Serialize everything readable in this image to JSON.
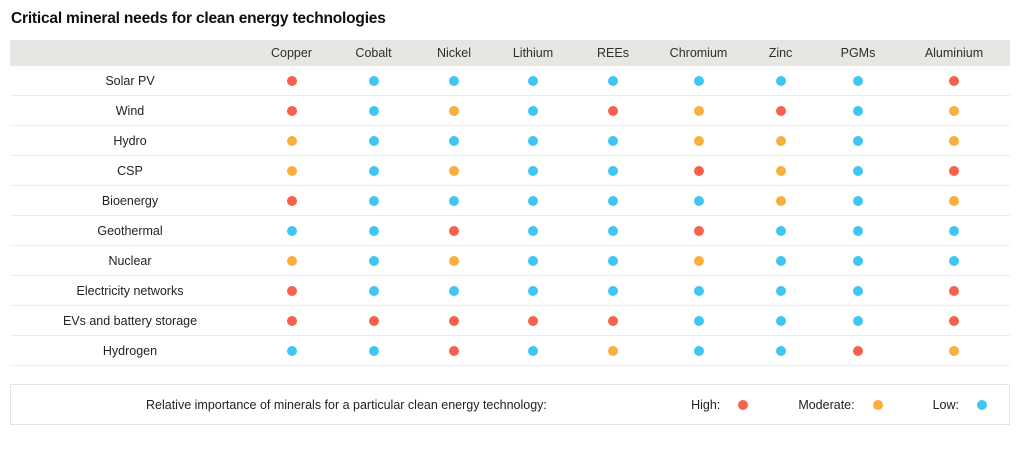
{
  "chart_data": {
    "type": "heatmap",
    "title": "Critical mineral needs for clean energy technologies",
    "columns": [
      "Copper",
      "Cobalt",
      "Nickel",
      "Lithium",
      "REEs",
      "Chromium",
      "Zinc",
      "PGMs",
      "Aluminium"
    ],
    "rows": [
      {
        "label": "Solar PV",
        "values": [
          "high",
          "low",
          "low",
          "low",
          "low",
          "low",
          "low",
          "low",
          "high"
        ]
      },
      {
        "label": "Wind",
        "values": [
          "high",
          "low",
          "moderate",
          "low",
          "high",
          "moderate",
          "high",
          "low",
          "moderate"
        ]
      },
      {
        "label": "Hydro",
        "values": [
          "moderate",
          "low",
          "low",
          "low",
          "low",
          "moderate",
          "moderate",
          "low",
          "moderate"
        ]
      },
      {
        "label": "CSP",
        "values": [
          "moderate",
          "low",
          "moderate",
          "low",
          "low",
          "high",
          "moderate",
          "low",
          "high"
        ]
      },
      {
        "label": "Bioenergy",
        "values": [
          "high",
          "low",
          "low",
          "low",
          "low",
          "low",
          "moderate",
          "low",
          "moderate"
        ]
      },
      {
        "label": "Geothermal",
        "values": [
          "low",
          "low",
          "high",
          "low",
          "low",
          "high",
          "low",
          "low",
          "low"
        ]
      },
      {
        "label": "Nuclear",
        "values": [
          "moderate",
          "low",
          "moderate",
          "low",
          "low",
          "moderate",
          "low",
          "low",
          "low"
        ]
      },
      {
        "label": "Electricity networks",
        "values": [
          "high",
          "low",
          "low",
          "low",
          "low",
          "low",
          "low",
          "low",
          "high"
        ]
      },
      {
        "label": "EVs and battery storage",
        "values": [
          "high",
          "high",
          "high",
          "high",
          "high",
          "low",
          "low",
          "low",
          "high"
        ]
      },
      {
        "label": "Hydrogen",
        "values": [
          "low",
          "low",
          "high",
          "low",
          "moderate",
          "low",
          "low",
          "high",
          "moderate"
        ]
      }
    ],
    "value_scale": [
      "high",
      "moderate",
      "low"
    ],
    "legend_position": "bottom"
  },
  "legend": {
    "description": "Relative importance of minerals for a particular clean energy technology:",
    "items": [
      {
        "label": "High:",
        "level": "high"
      },
      {
        "label": "Moderate:",
        "level": "moderate"
      },
      {
        "label": "Low:",
        "level": "low"
      }
    ]
  },
  "colors": {
    "high": "#F4624E",
    "moderate": "#F9AE3D",
    "low": "#3FC6F3",
    "header_bg": "#E7E6E3"
  }
}
